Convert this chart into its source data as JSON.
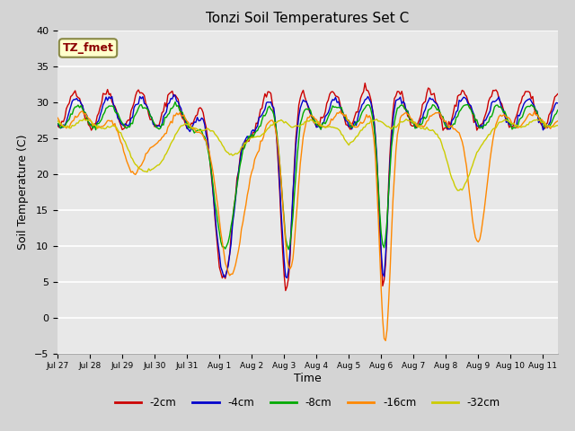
{
  "title": "Tonzi Soil Temperatures Set C",
  "xlabel": "Time",
  "ylabel": "Soil Temperature (C)",
  "ylim": [
    -5,
    40
  ],
  "background_color": "#e8e8e8",
  "annotation_text": "TZ_fmet",
  "annotation_color": "#8b0000",
  "annotation_bg": "#ffffcc",
  "x_tick_labels": [
    "Jul 27",
    "Jul 28",
    "Jul 29",
    "Jul 30",
    "Jul 31",
    "Aug 1",
    "Aug 2",
    "Aug 3",
    "Aug 4",
    "Aug 5",
    "Aug 6",
    "Aug 7",
    "Aug 8",
    "Aug 9",
    "Aug 10",
    "Aug 11"
  ],
  "series_colors": [
    "#cc0000",
    "#0000cc",
    "#00aa00",
    "#ff8800",
    "#cccc00"
  ],
  "series_labels": [
    "-2cm",
    "-4cm",
    "-8cm",
    "-16cm",
    "-32cm"
  ],
  "figsize": [
    6.4,
    4.8
  ],
  "dpi": 100
}
